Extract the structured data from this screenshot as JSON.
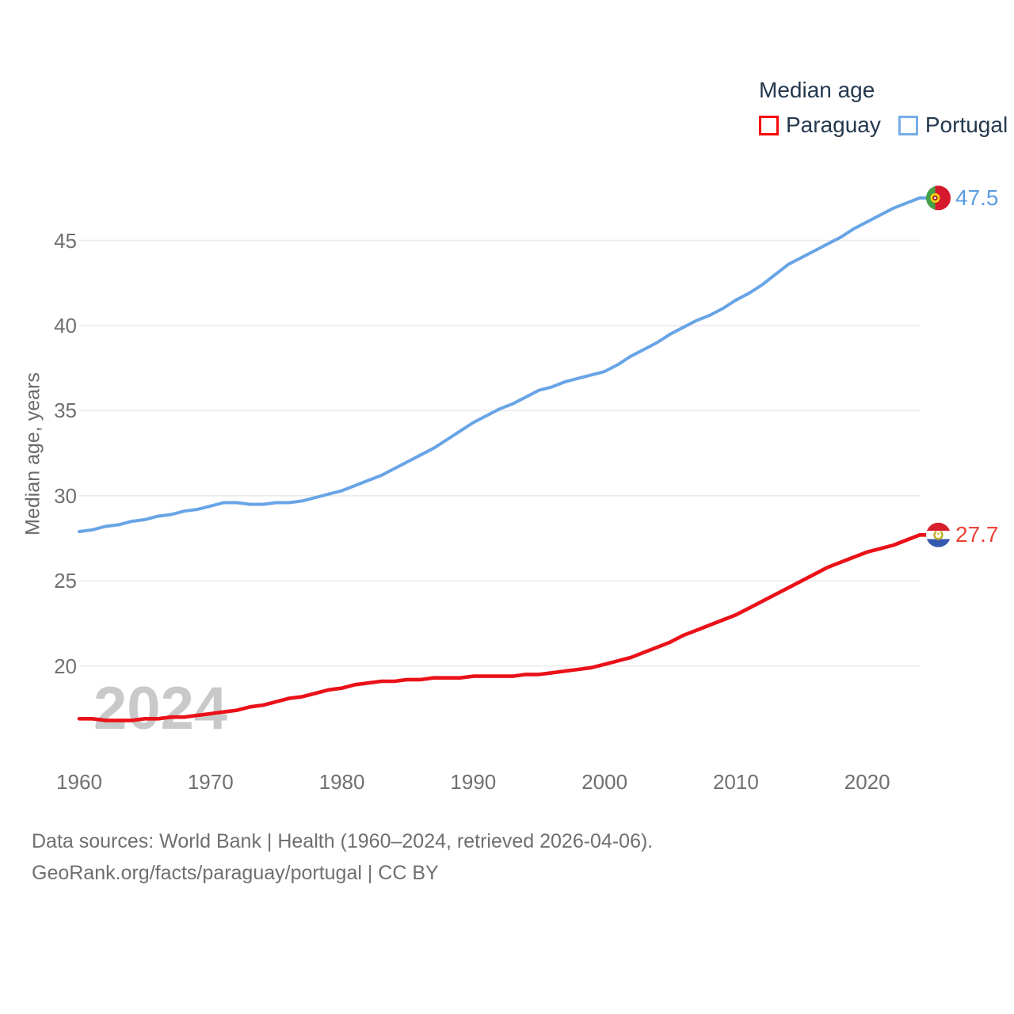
{
  "chart_data": {
    "type": "line",
    "title": "Median age",
    "ylabel": "Median age, years",
    "watermark": "2024",
    "grid": "horizontal",
    "legend_position": "top-right",
    "xlim": [
      1960,
      2024
    ],
    "ylim": [
      16.5,
      48.5
    ],
    "x_ticks": [
      1960,
      1970,
      1980,
      1990,
      2000,
      2010,
      2020
    ],
    "y_ticks": [
      20,
      25,
      30,
      35,
      40,
      45
    ],
    "x": [
      1960,
      1961,
      1962,
      1963,
      1964,
      1965,
      1966,
      1967,
      1968,
      1969,
      1970,
      1971,
      1972,
      1973,
      1974,
      1975,
      1976,
      1977,
      1978,
      1979,
      1980,
      1981,
      1982,
      1983,
      1984,
      1985,
      1986,
      1987,
      1988,
      1989,
      1990,
      1991,
      1992,
      1993,
      1994,
      1995,
      1996,
      1997,
      1998,
      1999,
      2000,
      2001,
      2002,
      2003,
      2004,
      2005,
      2006,
      2007,
      2008,
      2009,
      2010,
      2011,
      2012,
      2013,
      2014,
      2015,
      2016,
      2017,
      2018,
      2019,
      2020,
      2021,
      2022,
      2023,
      2024
    ],
    "series": [
      {
        "name": "Paraguay",
        "color": "#ea1118",
        "label_color": "#ef4136",
        "end_label": "27.7",
        "flag": "paraguay",
        "values": [
          16.9,
          16.9,
          16.8,
          16.8,
          16.8,
          16.9,
          16.9,
          17.0,
          17.0,
          17.1,
          17.2,
          17.3,
          17.4,
          17.6,
          17.7,
          17.9,
          18.1,
          18.2,
          18.4,
          18.6,
          18.7,
          18.9,
          19.0,
          19.1,
          19.1,
          19.2,
          19.2,
          19.3,
          19.3,
          19.3,
          19.4,
          19.4,
          19.4,
          19.4,
          19.5,
          19.5,
          19.6,
          19.7,
          19.8,
          19.9,
          20.1,
          20.3,
          20.5,
          20.8,
          21.1,
          21.4,
          21.8,
          22.1,
          22.4,
          22.7,
          23.0,
          23.4,
          23.8,
          24.2,
          24.6,
          25.0,
          25.4,
          25.8,
          26.1,
          26.4,
          26.7,
          26.9,
          27.1,
          27.4,
          27.7
        ]
      },
      {
        "name": "Portugal",
        "color": "#68a4e6",
        "label_color": "#5b9de3",
        "end_label": "47.5",
        "flag": "portugal",
        "values": [
          27.9,
          28.0,
          28.2,
          28.3,
          28.5,
          28.6,
          28.8,
          28.9,
          29.1,
          29.2,
          29.4,
          29.6,
          29.6,
          29.5,
          29.5,
          29.6,
          29.6,
          29.7,
          29.9,
          30.1,
          30.3,
          30.6,
          30.9,
          31.2,
          31.6,
          32.0,
          32.4,
          32.8,
          33.3,
          33.8,
          34.3,
          34.7,
          35.1,
          35.4,
          35.8,
          36.2,
          36.4,
          36.7,
          36.9,
          37.1,
          37.3,
          37.7,
          38.2,
          38.6,
          39.0,
          39.5,
          39.9,
          40.3,
          40.6,
          41.0,
          41.5,
          41.9,
          42.4,
          43.0,
          43.6,
          44.0,
          44.4,
          44.8,
          45.2,
          45.7,
          46.1,
          46.5,
          46.9,
          47.2,
          47.5
        ]
      }
    ]
  },
  "legend": {
    "title": "Median age",
    "items": [
      {
        "label": "Paraguay",
        "color": "#f60909"
      },
      {
        "label": "Portugal",
        "color": "#77aee8"
      }
    ]
  },
  "axes": {
    "y_title": "Median age, years"
  },
  "footer": {
    "line1": "Data sources: World Bank | Health (1960–2024, retrieved 2026-04-06).",
    "line2": "GeoRank.org/facts/paraguay/portugal | CC BY"
  }
}
